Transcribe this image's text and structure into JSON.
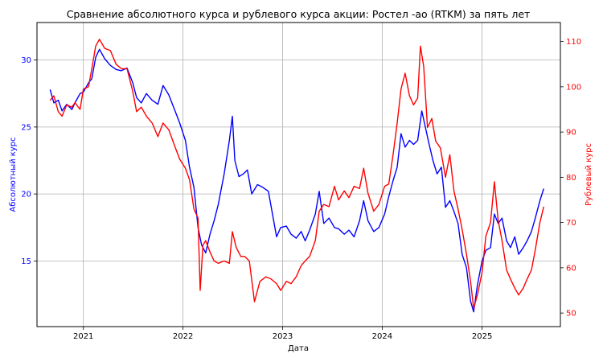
{
  "chart_data": {
    "type": "line",
    "title": "Сравнение абсолютного курса и рублевого курса акции: Ростел -ао (RTKM) за пять лет",
    "xlabel": "Дата",
    "ylabel_left": "Абсолютный курс",
    "ylabel_right": "Рублевый курс",
    "x_ticks": [
      "2021",
      "2022",
      "2023",
      "2024",
      "2025"
    ],
    "y_left_ticks": [
      "15",
      "20",
      "25",
      "30"
    ],
    "y_right_ticks": [
      "50",
      "60",
      "70",
      "80",
      "90",
      "100",
      "110"
    ],
    "y_left_range": [
      10.1,
      32.8
    ],
    "y_right_range": [
      47.0,
      114.2
    ],
    "x_range": [
      "2020-07-15",
      "2025-10-15"
    ],
    "grid": true,
    "colors": {
      "left": "#0000ff",
      "right": "#ff0000"
    },
    "series": [
      {
        "axis": "left",
        "color": "#0000ff",
        "points": [
          [
            "2020-09-01",
            27.8
          ],
          [
            "2020-09-15",
            26.8
          ],
          [
            "2020-10-01",
            27.0
          ],
          [
            "2020-10-15",
            26.2
          ],
          [
            "2020-11-01",
            26.7
          ],
          [
            "2020-11-20",
            26.3
          ],
          [
            "2020-12-01",
            26.8
          ],
          [
            "2020-12-20",
            27.5
          ],
          [
            "2021-01-01",
            27.6
          ],
          [
            "2021-01-20",
            28.3
          ],
          [
            "2021-02-01",
            28.6
          ],
          [
            "2021-02-15",
            30.2
          ],
          [
            "2021-03-01",
            30.8
          ],
          [
            "2021-03-20",
            30.1
          ],
          [
            "2021-04-10",
            29.6
          ],
          [
            "2021-05-01",
            29.3
          ],
          [
            "2021-05-20",
            29.2
          ],
          [
            "2021-06-10",
            29.4
          ],
          [
            "2021-07-01",
            28.3
          ],
          [
            "2021-07-15",
            27.2
          ],
          [
            "2021-08-01",
            26.8
          ],
          [
            "2021-08-20",
            27.5
          ],
          [
            "2021-09-10",
            27.0
          ],
          [
            "2021-10-01",
            26.7
          ],
          [
            "2021-10-20",
            28.1
          ],
          [
            "2021-11-10",
            27.4
          ],
          [
            "2021-12-01",
            26.3
          ],
          [
            "2021-12-20",
            25.3
          ],
          [
            "2022-01-10",
            24.0
          ],
          [
            "2022-01-25",
            22.0
          ],
          [
            "2022-02-10",
            20.5
          ],
          [
            "2022-02-25",
            17.5
          ],
          [
            "2022-03-10",
            16.2
          ],
          [
            "2022-03-25",
            15.6
          ],
          [
            "2022-04-10",
            17.0
          ],
          [
            "2022-04-25",
            18.0
          ],
          [
            "2022-05-10",
            19.2
          ],
          [
            "2022-06-01",
            21.5
          ],
          [
            "2022-06-20",
            24.0
          ],
          [
            "2022-07-01",
            25.8
          ],
          [
            "2022-07-10",
            22.5
          ],
          [
            "2022-07-25",
            21.3
          ],
          [
            "2022-08-10",
            21.5
          ],
          [
            "2022-08-25",
            21.8
          ],
          [
            "2022-09-10",
            20.0
          ],
          [
            "2022-10-01",
            20.7
          ],
          [
            "2022-10-20",
            20.5
          ],
          [
            "2022-11-10",
            20.2
          ],
          [
            "2022-11-25",
            18.5
          ],
          [
            "2022-12-10",
            16.8
          ],
          [
            "2022-12-25",
            17.5
          ],
          [
            "2023-01-15",
            17.6
          ],
          [
            "2023-02-01",
            17.0
          ],
          [
            "2023-02-20",
            16.7
          ],
          [
            "2023-03-10",
            17.2
          ],
          [
            "2023-03-25",
            16.5
          ],
          [
            "2023-04-10",
            17.3
          ],
          [
            "2023-05-01",
            18.5
          ],
          [
            "2023-05-15",
            20.2
          ],
          [
            "2023-06-01",
            17.8
          ],
          [
            "2023-06-20",
            18.2
          ],
          [
            "2023-07-10",
            17.5
          ],
          [
            "2023-07-25",
            17.4
          ],
          [
            "2023-08-15",
            17.0
          ],
          [
            "2023-09-01",
            17.3
          ],
          [
            "2023-09-20",
            16.8
          ],
          [
            "2023-10-10",
            18.0
          ],
          [
            "2023-10-25",
            19.5
          ],
          [
            "2023-11-10",
            18.0
          ],
          [
            "2023-12-01",
            17.2
          ],
          [
            "2023-12-20",
            17.5
          ],
          [
            "2024-01-10",
            18.5
          ],
          [
            "2024-01-25",
            19.8
          ],
          [
            "2024-02-10",
            21.0
          ],
          [
            "2024-02-25",
            22.0
          ],
          [
            "2024-03-10",
            24.5
          ],
          [
            "2024-03-25",
            23.5
          ],
          [
            "2024-04-10",
            24.0
          ],
          [
            "2024-04-25",
            23.7
          ],
          [
            "2024-05-10",
            24.0
          ],
          [
            "2024-05-25",
            26.2
          ],
          [
            "2024-06-05",
            25.2
          ],
          [
            "2024-06-20",
            23.8
          ],
          [
            "2024-07-05",
            22.5
          ],
          [
            "2024-07-20",
            21.5
          ],
          [
            "2024-08-05",
            22.0
          ],
          [
            "2024-08-20",
            19.0
          ],
          [
            "2024-09-05",
            19.5
          ],
          [
            "2024-09-20",
            18.7
          ],
          [
            "2024-10-05",
            17.8
          ],
          [
            "2024-10-20",
            15.5
          ],
          [
            "2024-11-05",
            14.5
          ],
          [
            "2024-11-20",
            12.0
          ],
          [
            "2024-12-01",
            11.2
          ],
          [
            "2024-12-15",
            13.2
          ],
          [
            "2025-01-01",
            15.0
          ],
          [
            "2025-01-15",
            15.8
          ],
          [
            "2025-02-01",
            16.0
          ],
          [
            "2025-02-15",
            18.5
          ],
          [
            "2025-03-01",
            17.8
          ],
          [
            "2025-03-15",
            18.2
          ],
          [
            "2025-04-01",
            16.5
          ],
          [
            "2025-04-15",
            16.0
          ],
          [
            "2025-05-01",
            16.8
          ],
          [
            "2025-05-15",
            15.5
          ],
          [
            "2025-06-01",
            16.0
          ],
          [
            "2025-06-15",
            16.5
          ],
          [
            "2025-07-01",
            17.2
          ],
          [
            "2025-07-15",
            18.2
          ],
          [
            "2025-08-01",
            19.5
          ],
          [
            "2025-08-15",
            20.4
          ]
        ]
      },
      {
        "axis": "right",
        "color": "#ff0000",
        "points": [
          [
            "2020-09-01",
            97.0
          ],
          [
            "2020-09-15",
            98.0
          ],
          [
            "2020-10-01",
            94.5
          ],
          [
            "2020-10-15",
            93.5
          ],
          [
            "2020-11-01",
            96.0
          ],
          [
            "2020-11-20",
            95.5
          ],
          [
            "2020-12-01",
            96.5
          ],
          [
            "2020-12-20",
            95.0
          ],
          [
            "2021-01-01",
            99.5
          ],
          [
            "2021-01-20",
            100.0
          ],
          [
            "2021-02-01",
            104.0
          ],
          [
            "2021-02-15",
            109.0
          ],
          [
            "2021-03-01",
            110.5
          ],
          [
            "2021-03-20",
            108.5
          ],
          [
            "2021-04-10",
            108.0
          ],
          [
            "2021-05-01",
            105.0
          ],
          [
            "2021-05-20",
            104.0
          ],
          [
            "2021-06-10",
            104.0
          ],
          [
            "2021-07-01",
            99.0
          ],
          [
            "2021-07-15",
            94.5
          ],
          [
            "2021-08-01",
            95.5
          ],
          [
            "2021-08-20",
            93.5
          ],
          [
            "2021-09-10",
            92.0
          ],
          [
            "2021-10-01",
            89.0
          ],
          [
            "2021-10-20",
            92.0
          ],
          [
            "2021-11-10",
            90.5
          ],
          [
            "2021-12-01",
            87.0
          ],
          [
            "2021-12-20",
            84.0
          ],
          [
            "2022-01-10",
            82.0
          ],
          [
            "2022-01-25",
            79.5
          ],
          [
            "2022-02-10",
            73.0
          ],
          [
            "2022-02-25",
            71.0
          ],
          [
            "2022-03-05",
            55.0
          ],
          [
            "2022-03-15",
            65.0
          ],
          [
            "2022-03-25",
            66.0
          ],
          [
            "2022-04-10",
            63.5
          ],
          [
            "2022-04-25",
            61.5
          ],
          [
            "2022-05-10",
            61.0
          ],
          [
            "2022-06-01",
            61.5
          ],
          [
            "2022-06-20",
            61.0
          ],
          [
            "2022-07-01",
            68.0
          ],
          [
            "2022-07-15",
            64.5
          ],
          [
            "2022-08-01",
            62.5
          ],
          [
            "2022-08-15",
            62.5
          ],
          [
            "2022-09-01",
            61.5
          ],
          [
            "2022-09-20",
            52.5
          ],
          [
            "2022-10-10",
            57.0
          ],
          [
            "2022-11-01",
            58.0
          ],
          [
            "2022-11-20",
            57.5
          ],
          [
            "2022-12-10",
            56.5
          ],
          [
            "2022-12-25",
            55.0
          ],
          [
            "2023-01-15",
            57.0
          ],
          [
            "2023-02-01",
            56.5
          ],
          [
            "2023-02-20",
            58.0
          ],
          [
            "2023-03-10",
            60.5
          ],
          [
            "2023-03-25",
            61.5
          ],
          [
            "2023-04-10",
            62.5
          ],
          [
            "2023-05-01",
            66.0
          ],
          [
            "2023-05-15",
            72.5
          ],
          [
            "2023-06-01",
            74.0
          ],
          [
            "2023-06-20",
            73.5
          ],
          [
            "2023-07-10",
            78.0
          ],
          [
            "2023-07-25",
            75.0
          ],
          [
            "2023-08-15",
            77.0
          ],
          [
            "2023-09-01",
            75.5
          ],
          [
            "2023-09-20",
            78.0
          ],
          [
            "2023-10-10",
            77.5
          ],
          [
            "2023-10-25",
            82.0
          ],
          [
            "2023-11-10",
            76.5
          ],
          [
            "2023-12-01",
            72.5
          ],
          [
            "2023-12-20",
            74.0
          ],
          [
            "2024-01-10",
            78.0
          ],
          [
            "2024-01-25",
            78.5
          ],
          [
            "2024-02-10",
            85.0
          ],
          [
            "2024-02-25",
            92.0
          ],
          [
            "2024-03-10",
            99.5
          ],
          [
            "2024-03-25",
            103.0
          ],
          [
            "2024-04-10",
            98.0
          ],
          [
            "2024-04-25",
            96.0
          ],
          [
            "2024-05-10",
            97.5
          ],
          [
            "2024-05-20",
            109.0
          ],
          [
            "2024-06-01",
            104.5
          ],
          [
            "2024-06-15",
            91.0
          ],
          [
            "2024-07-01",
            93.0
          ],
          [
            "2024-07-15",
            88.0
          ],
          [
            "2024-08-01",
            86.5
          ],
          [
            "2024-08-20",
            80.0
          ],
          [
            "2024-09-05",
            85.0
          ],
          [
            "2024-09-20",
            77.0
          ],
          [
            "2024-10-05",
            73.0
          ],
          [
            "2024-10-20",
            68.5
          ],
          [
            "2024-11-05",
            63.0
          ],
          [
            "2024-11-20",
            57.0
          ],
          [
            "2024-12-01",
            51.0
          ],
          [
            "2024-12-15",
            54.0
          ],
          [
            "2025-01-01",
            59.0
          ],
          [
            "2025-01-15",
            67.0
          ],
          [
            "2025-02-01",
            70.0
          ],
          [
            "2025-02-15",
            79.0
          ],
          [
            "2025-03-01",
            70.5
          ],
          [
            "2025-03-15",
            66.0
          ],
          [
            "2025-04-01",
            59.5
          ],
          [
            "2025-04-15",
            57.5
          ],
          [
            "2025-05-01",
            55.5
          ],
          [
            "2025-05-15",
            54.0
          ],
          [
            "2025-06-01",
            55.5
          ],
          [
            "2025-06-15",
            57.5
          ],
          [
            "2025-07-01",
            59.5
          ],
          [
            "2025-07-15",
            64.0
          ],
          [
            "2025-08-01",
            70.0
          ],
          [
            "2025-08-15",
            73.5
          ]
        ]
      }
    ]
  }
}
